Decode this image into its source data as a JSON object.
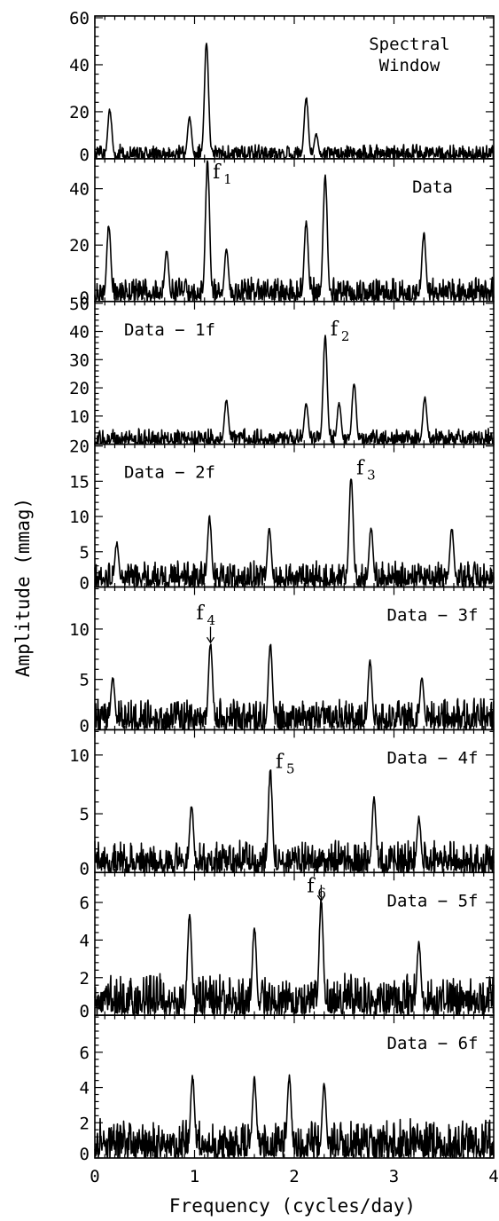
{
  "chart_data": {
    "type": "line",
    "xlabel": "Frequency (cycles/day)",
    "ylabel": "Amplitude (mmag)",
    "xlim": [
      0,
      4
    ],
    "x_ticks": [
      "0",
      "1",
      "2",
      "3",
      "4"
    ],
    "panels": [
      {
        "label": "Spectral Window",
        "label_lines": [
          "Spectral",
          "Window"
        ],
        "ylim": [
          0,
          60
        ],
        "y_ticks": [
          "0",
          "20",
          "40",
          "60"
        ],
        "peaks": [
          [
            0.15,
            20
          ],
          [
            0.95,
            17
          ],
          [
            1.12,
            48
          ],
          [
            2.12,
            25
          ],
          [
            2.22,
            10
          ]
        ],
        "noise": 5,
        "seed": 1
      },
      {
        "label": "Data",
        "ylim": [
          0,
          50
        ],
        "y_ticks": [
          "0",
          "20",
          "40"
        ],
        "peaks": [
          [
            0.14,
            26
          ],
          [
            0.72,
            17
          ],
          [
            1.13,
            48
          ],
          [
            1.32,
            18
          ],
          [
            2.12,
            27
          ],
          [
            2.31,
            43
          ],
          [
            3.3,
            23
          ]
        ],
        "noise": 7,
        "seed": 2,
        "marker": {
          "freq": 1.13,
          "amp": 48,
          "letter": "f",
          "index": "1",
          "arrow": false
        }
      },
      {
        "label": "Data − 1f",
        "ylim": [
          0,
          50
        ],
        "y_ticks": [
          "10",
          "20",
          "30",
          "40",
          "50"
        ],
        "peaks": [
          [
            1.32,
            15
          ],
          [
            2.12,
            14
          ],
          [
            2.31,
            36
          ],
          [
            2.45,
            14
          ],
          [
            2.6,
            21
          ],
          [
            3.31,
            16
          ]
        ],
        "noise": 4.5,
        "seed": 3,
        "marker": {
          "freq": 2.31,
          "amp": 36,
          "letter": "f",
          "index": "2",
          "arrow": false
        }
      },
      {
        "label": "Data − 2f",
        "ylim": [
          0,
          20
        ],
        "y_ticks": [
          "0",
          "5",
          "10",
          "15",
          "20"
        ],
        "peaks": [
          [
            0.22,
            6
          ],
          [
            1.15,
            9.5
          ],
          [
            1.75,
            8
          ],
          [
            2.57,
            15
          ],
          [
            2.77,
            8
          ],
          [
            3.58,
            8
          ]
        ],
        "noise": 3,
        "seed": 4,
        "marker": {
          "freq": 2.57,
          "amp": 15,
          "letter": "f",
          "index": "3",
          "arrow": false
        }
      },
      {
        "label": "Data − 3f",
        "ylim": [
          0,
          14
        ],
        "y_ticks": [
          "0",
          "5",
          "10"
        ],
        "peaks": [
          [
            0.18,
            5
          ],
          [
            1.16,
            8.3
          ],
          [
            1.76,
            8.3
          ],
          [
            2.76,
            6.5
          ],
          [
            3.28,
            5
          ]
        ],
        "noise": 2.5,
        "seed": 5,
        "marker": {
          "freq": 1.16,
          "amp": 8.3,
          "letter": "f",
          "index": "4",
          "arrow": true
        }
      },
      {
        "label": "Data − 4f",
        "ylim": [
          0,
          12
        ],
        "y_ticks": [
          "0",
          "5",
          "10"
        ],
        "peaks": [
          [
            0.97,
            5.5
          ],
          [
            1.76,
            8.3
          ],
          [
            2.8,
            6
          ],
          [
            3.25,
            4.5
          ]
        ],
        "noise": 2.2,
        "seed": 6,
        "marker": {
          "freq": 1.76,
          "amp": 8.3,
          "letter": "f",
          "index": "5",
          "arrow": false
        }
      },
      {
        "label": "Data − 5f",
        "ylim": [
          0,
          7.5
        ],
        "y_ticks": [
          "0",
          "2",
          "4",
          "6"
        ],
        "peaks": [
          [
            0.95,
            5.2
          ],
          [
            1.6,
            4.5
          ],
          [
            2.27,
            5.9
          ],
          [
            3.25,
            3.7
          ]
        ],
        "noise": 1.8,
        "seed": 7,
        "marker": {
          "freq": 2.27,
          "amp": 5.9,
          "letter": "f",
          "index": "6",
          "arrow": true
        }
      },
      {
        "label": "Data − 6f",
        "ylim": [
          0,
          8
        ],
        "y_ticks": [
          "0",
          "2",
          "4",
          "6"
        ],
        "peaks": [
          [
            0.98,
            4.4
          ],
          [
            1.6,
            4.3
          ],
          [
            1.95,
            4.4
          ],
          [
            2.3,
            4
          ]
        ],
        "noise": 1.8,
        "seed": 8
      }
    ]
  }
}
